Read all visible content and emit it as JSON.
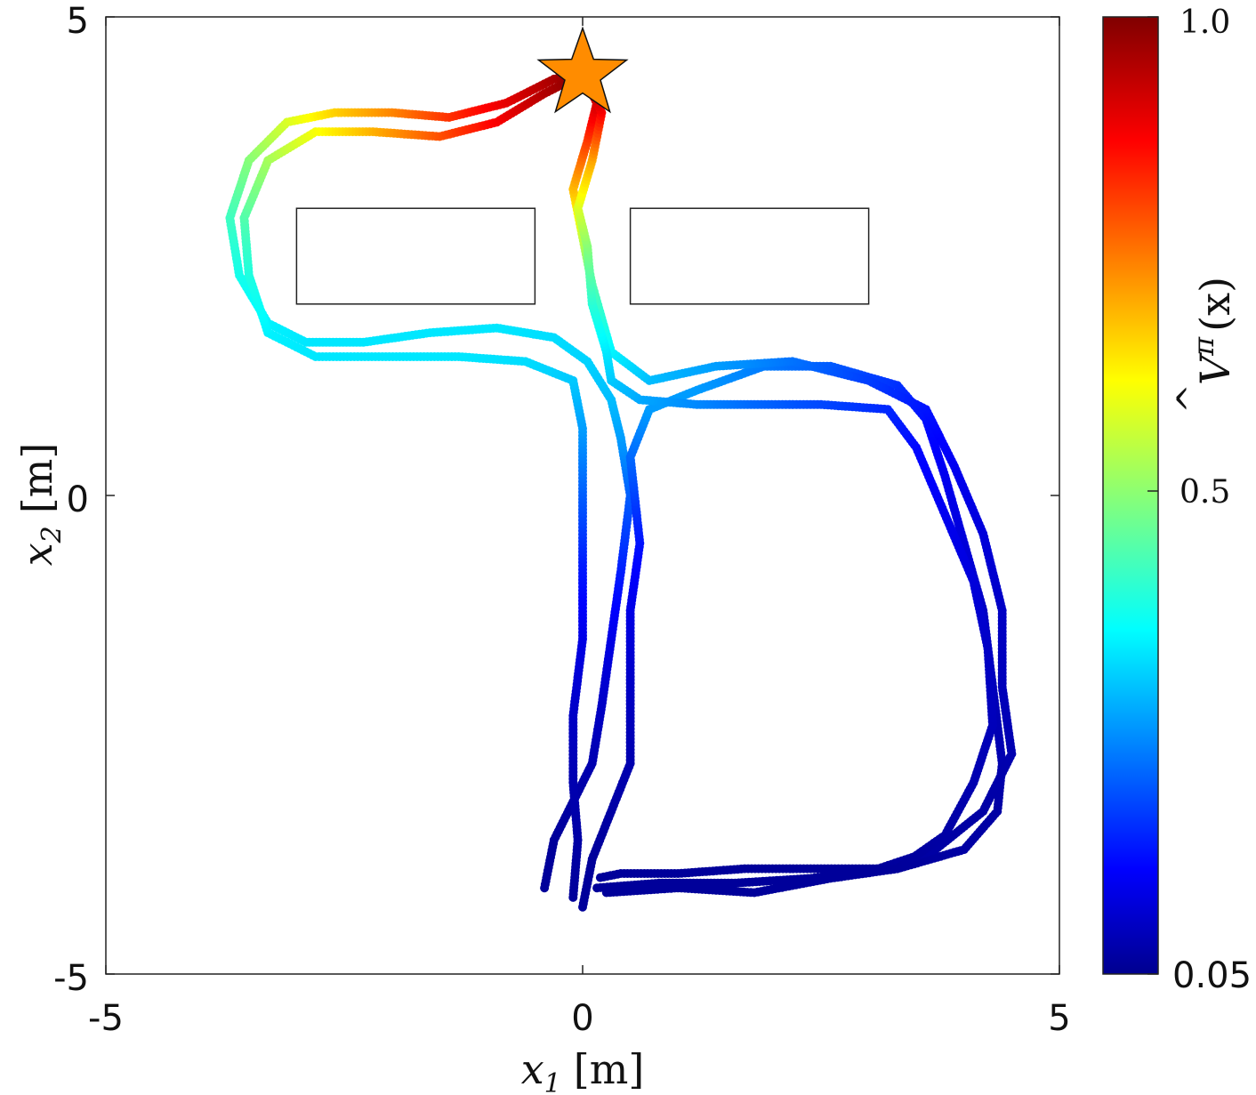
{
  "chart_data": {
    "type": "scatter",
    "title": "",
    "xlabel_var": "x",
    "xlabel_sub": "1",
    "xlabel_unit": "[m]",
    "ylabel_var": "x",
    "ylabel_sub": "2",
    "ylabel_unit": "[m]",
    "xlim": [
      -5,
      5
    ],
    "ylim": [
      -5,
      5
    ],
    "x_ticks": [
      "-5",
      "0",
      "5"
    ],
    "y_ticks": [
      "5",
      "0",
      "-5"
    ],
    "grid": false,
    "colorbar": {
      "label_var": "V",
      "label_sup": "π",
      "label_arg": "(x)",
      "colormap": "jet",
      "range": [
        0.05,
        1.0
      ],
      "ticks": [
        "1.0",
        "0.5",
        "0.05"
      ]
    },
    "obstacles": [
      {
        "name": "left-obstacle",
        "x": [
          -3.0,
          -0.5
        ],
        "y": [
          2.0,
          3.0
        ]
      },
      {
        "name": "right-obstacle",
        "x": [
          0.5,
          3.0
        ],
        "y": [
          2.0,
          3.0
        ]
      }
    ],
    "goal": {
      "x": 0.0,
      "y": 4.4,
      "marker": "star",
      "color": "#ff8c00"
    },
    "trajectories": [
      {
        "name": "trajectory-1",
        "points": [
          [
            -0.4,
            -4.1
          ],
          [
            -0.3,
            -3.6
          ],
          [
            -0.1,
            -3.2
          ],
          [
            0.1,
            -2.8
          ],
          [
            0.2,
            -2.2
          ],
          [
            0.3,
            -1.5
          ],
          [
            0.4,
            -0.8
          ],
          [
            0.5,
            0.0
          ],
          [
            0.4,
            0.6
          ],
          [
            0.3,
            1.0
          ],
          [
            0.05,
            1.4
          ],
          [
            -0.3,
            1.65
          ],
          [
            -0.9,
            1.75
          ],
          [
            -1.6,
            1.7
          ],
          [
            -2.3,
            1.6
          ],
          [
            -2.9,
            1.6
          ],
          [
            -3.3,
            1.8
          ],
          [
            -3.6,
            2.3
          ],
          [
            -3.7,
            2.9
          ],
          [
            -3.5,
            3.5
          ],
          [
            -3.1,
            3.9
          ],
          [
            -2.6,
            4.0
          ],
          [
            -2.0,
            4.0
          ],
          [
            -1.4,
            3.95
          ],
          [
            -0.8,
            4.1
          ],
          [
            -0.3,
            4.35
          ],
          [
            0.0,
            4.4
          ]
        ],
        "values": [
          0.06,
          0.06,
          0.07,
          0.08,
          0.1,
          0.13,
          0.18,
          0.24,
          0.3,
          0.33,
          0.35,
          0.36,
          0.37,
          0.37,
          0.37,
          0.37,
          0.38,
          0.41,
          0.45,
          0.52,
          0.6,
          0.68,
          0.75,
          0.83,
          0.9,
          0.96,
          1.0
        ]
      },
      {
        "name": "trajectory-2",
        "points": [
          [
            0.0,
            -4.3
          ],
          [
            0.1,
            -3.8
          ],
          [
            0.3,
            -3.3
          ],
          [
            0.5,
            -2.8
          ],
          [
            0.5,
            -2.0
          ],
          [
            0.5,
            -1.2
          ],
          [
            0.6,
            -0.5
          ],
          [
            0.5,
            0.4
          ],
          [
            0.7,
            0.9
          ],
          [
            1.2,
            1.1
          ],
          [
            1.9,
            1.35
          ],
          [
            2.6,
            1.35
          ],
          [
            3.3,
            1.15
          ],
          [
            3.6,
            0.8
          ],
          [
            3.8,
            0.2
          ],
          [
            4.0,
            -0.5
          ],
          [
            4.2,
            -1.2
          ],
          [
            4.3,
            -2.0
          ],
          [
            4.4,
            -2.8
          ],
          [
            4.35,
            -3.3
          ],
          [
            4.0,
            -3.7
          ],
          [
            3.3,
            -3.9
          ],
          [
            2.5,
            -3.9
          ],
          [
            1.7,
            -3.9
          ],
          [
            1.0,
            -3.95
          ],
          [
            0.4,
            -3.95
          ],
          [
            0.15,
            -4.0
          ]
        ],
        "values": [
          0.06,
          0.06,
          0.07,
          0.08,
          0.1,
          0.13,
          0.17,
          0.25,
          0.3,
          0.3,
          0.27,
          0.24,
          0.2,
          0.17,
          0.14,
          0.12,
          0.1,
          0.09,
          0.08,
          0.07,
          0.07,
          0.06,
          0.06,
          0.06,
          0.06,
          0.06,
          0.06
        ]
      },
      {
        "name": "trajectory-3",
        "points": [
          [
            0.15,
            -4.1
          ],
          [
            0.8,
            -4.05
          ],
          [
            1.6,
            -4.05
          ],
          [
            2.4,
            -4.0
          ],
          [
            3.1,
            -3.9
          ],
          [
            3.7,
            -3.7
          ],
          [
            4.2,
            -3.3
          ],
          [
            4.5,
            -2.7
          ],
          [
            4.4,
            -2.0
          ],
          [
            4.4,
            -1.2
          ],
          [
            4.2,
            -0.4
          ],
          [
            3.9,
            0.3
          ],
          [
            3.6,
            0.9
          ],
          [
            3.0,
            1.2
          ],
          [
            2.2,
            1.4
          ],
          [
            1.4,
            1.35
          ],
          [
            0.7,
            1.2
          ],
          [
            0.3,
            1.5
          ],
          [
            0.1,
            2.2
          ],
          [
            0.0,
            2.7
          ],
          [
            -0.1,
            3.2
          ],
          [
            0.05,
            3.7
          ],
          [
            0.15,
            4.1
          ],
          [
            0.05,
            4.3
          ],
          [
            0.0,
            4.4
          ]
        ],
        "values": [
          0.06,
          0.06,
          0.06,
          0.06,
          0.06,
          0.07,
          0.07,
          0.08,
          0.09,
          0.1,
          0.12,
          0.14,
          0.17,
          0.21,
          0.26,
          0.3,
          0.33,
          0.38,
          0.47,
          0.58,
          0.7,
          0.82,
          0.92,
          0.97,
          1.0
        ]
      },
      {
        "name": "trajectory-4",
        "points": [
          [
            -0.1,
            -4.2
          ],
          [
            -0.05,
            -3.6
          ],
          [
            -0.1,
            -3.0
          ],
          [
            -0.1,
            -2.3
          ],
          [
            0.0,
            -1.5
          ],
          [
            0.0,
            -0.7
          ],
          [
            0.0,
            0.0
          ],
          [
            0.0,
            0.7
          ],
          [
            -0.1,
            1.2
          ],
          [
            -0.6,
            1.4
          ],
          [
            -1.3,
            1.45
          ],
          [
            -2.1,
            1.45
          ],
          [
            -2.8,
            1.45
          ],
          [
            -3.3,
            1.7
          ],
          [
            -3.5,
            2.3
          ],
          [
            -3.55,
            2.9
          ],
          [
            -3.3,
            3.5
          ],
          [
            -2.8,
            3.8
          ],
          [
            -2.2,
            3.8
          ],
          [
            -1.5,
            3.75
          ],
          [
            -0.9,
            3.9
          ],
          [
            -0.4,
            4.2
          ],
          [
            0.0,
            4.4
          ]
        ],
        "values": [
          0.06,
          0.07,
          0.08,
          0.1,
          0.13,
          0.18,
          0.24,
          0.3,
          0.34,
          0.36,
          0.37,
          0.37,
          0.37,
          0.38,
          0.42,
          0.47,
          0.55,
          0.63,
          0.71,
          0.8,
          0.88,
          0.95,
          1.0
        ]
      },
      {
        "name": "trajectory-5",
        "points": [
          [
            0.25,
            -4.15
          ],
          [
            1.0,
            -4.1
          ],
          [
            1.8,
            -4.15
          ],
          [
            2.6,
            -4.0
          ],
          [
            3.3,
            -3.9
          ],
          [
            3.8,
            -3.55
          ],
          [
            4.1,
            -3.0
          ],
          [
            4.3,
            -2.4
          ],
          [
            4.25,
            -1.6
          ],
          [
            4.1,
            -0.9
          ],
          [
            3.8,
            -0.2
          ],
          [
            3.5,
            0.5
          ],
          [
            3.2,
            0.9
          ],
          [
            2.5,
            0.95
          ],
          [
            1.8,
            0.95
          ],
          [
            1.2,
            0.95
          ],
          [
            0.6,
            1.0
          ],
          [
            0.3,
            1.2
          ],
          [
            0.25,
            1.5
          ],
          [
            0.1,
            2.0
          ],
          [
            0.05,
            2.6
          ],
          [
            -0.05,
            3.0
          ],
          [
            0.1,
            3.5
          ],
          [
            0.2,
            4.0
          ],
          [
            0.0,
            4.4
          ]
        ],
        "values": [
          0.06,
          0.06,
          0.06,
          0.06,
          0.06,
          0.07,
          0.08,
          0.09,
          0.1,
          0.12,
          0.14,
          0.16,
          0.19,
          0.22,
          0.25,
          0.28,
          0.31,
          0.34,
          0.37,
          0.43,
          0.52,
          0.6,
          0.72,
          0.88,
          1.0
        ]
      }
    ]
  }
}
